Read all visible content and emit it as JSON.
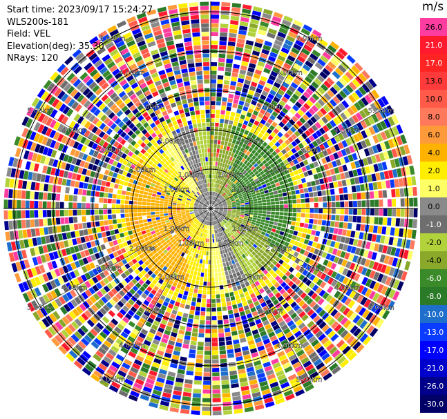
{
  "info": {
    "start_time": "Start time: 2023/09/17 15:24:27",
    "station": "WLS200s-181",
    "field": "Field: VEL",
    "elevation": "Elevation(deg): 35.30",
    "nrays": "NRays: 120"
  },
  "ring_labels": [
    "1.00km",
    "2.00km",
    "3.00km",
    "4.00km",
    "5.00km"
  ],
  "colorbar": {
    "unit": "m/s",
    "ticks": [
      "26.0",
      "21.0",
      "17.0",
      "13.0",
      "10.0",
      "8.0",
      "6.0",
      "4.0",
      "2.0",
      "1.0",
      "0.0",
      "-1.0",
      "-2.0",
      "-4.0",
      "-6.0",
      "-8.0",
      "-10.0",
      "-13.0",
      "-17.0",
      "-21.0",
      "-26.0",
      "-30.0"
    ],
    "colors": [
      "#ff3ca0",
      "#ff1a2e",
      "#ff2424",
      "#ff3a3a",
      "#ff5a4a",
      "#ff7a5c",
      "#ff9a3a",
      "#ffb300",
      "#ffee00",
      "#ffff66",
      "#8a8a8a",
      "#6e6e6e",
      "#b2d23c",
      "#8aa82a",
      "#3a8a2a",
      "#2a7a28",
      "#1e6ecb",
      "#0a3cff",
      "#0000ff",
      "#0000cc",
      "#00008a",
      "#000066"
    ]
  }
}
